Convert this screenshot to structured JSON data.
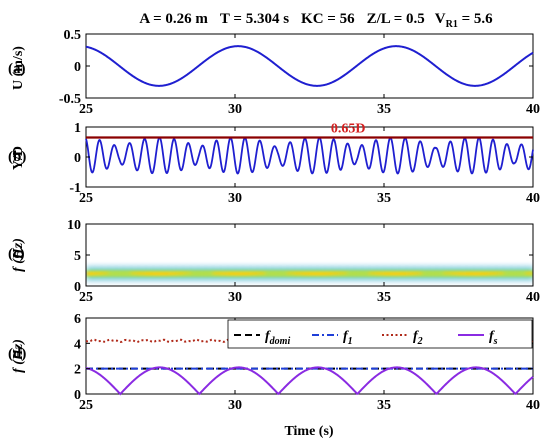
{
  "header": {
    "A": "A = 0.26 m",
    "T": "T = 5.304 s",
    "KC": "KC = 56",
    "ZL": "Z/L = 0.5",
    "VR_main": "V",
    "VR_sub": "R1",
    "VR_val": " = 5.6"
  },
  "xlabel": "Time (s)",
  "colors": {
    "signal": "#1f1fd0",
    "threshold": "#8b0000",
    "annotation": "#d42020",
    "f_domi": "#000000",
    "f_1": "#1f3fd8",
    "f_2": "#b02a1a",
    "f_s": "#8a2be2"
  },
  "chart_data": [
    {
      "id": "a",
      "panel_label": "(a)",
      "type": "line",
      "ylabel": "U (m/s)",
      "xlim": [
        25,
        40
      ],
      "ylim": [
        -0.5,
        0.5
      ],
      "xticks": [
        "25",
        "30",
        "35",
        "40"
      ],
      "yticks": [
        "-0.5",
        "0",
        "0.5"
      ],
      "ytick_values": [
        -0.5,
        0,
        0.5
      ],
      "series": [
        {
          "amplitude": 0.31,
          "period": 5.304,
          "peak_time": 30.1
        }
      ]
    },
    {
      "id": "b",
      "panel_label": "(b)",
      "type": "line",
      "ylabel": "Y/D",
      "xlim": [
        25,
        40
      ],
      "ylim": [
        -1,
        1
      ],
      "xticks": [
        "25",
        "30",
        "35",
        "40"
      ],
      "yticks": [
        "-1",
        "0",
        "1"
      ],
      "ytick_values": [
        -1,
        0,
        1
      ],
      "threshold": 0.65,
      "annotation": "0.65D",
      "annotation_x": 33.8,
      "series": [
        {
          "mean": 0.05,
          "amp_min": 0.25,
          "amp_max": 0.6,
          "frequency": 2.05
        }
      ]
    },
    {
      "id": "c",
      "panel_label": "(c)",
      "type": "heatmap",
      "ylabel": "f (Hz)",
      "xlim": [
        25,
        40
      ],
      "ylim": [
        0,
        10
      ],
      "xticks": [
        "25",
        "30",
        "35",
        "40"
      ],
      "yticks": [
        "0",
        "5",
        "10"
      ],
      "ytick_values": [
        0,
        5,
        10
      ],
      "ridge_frequency": 2.0
    },
    {
      "id": "d",
      "panel_label": "(d)",
      "type": "line",
      "ylabel": "f (Hz)",
      "xlim": [
        25,
        40
      ],
      "ylim": [
        0,
        6
      ],
      "xticks": [
        "25",
        "30",
        "35",
        "40"
      ],
      "yticks": [
        "0",
        "2",
        "4",
        "6"
      ],
      "ytick_values": [
        0,
        2,
        4,
        6
      ],
      "legend": [
        {
          "main": "f",
          "sub": "domi",
          "style": "dashed",
          "color_key": "f_domi"
        },
        {
          "main": "f",
          "sub": "1",
          "style": "dashdot",
          "color_key": "f_1"
        },
        {
          "main": "f",
          "sub": "2",
          "style": "dotted",
          "color_key": "f_2"
        },
        {
          "main": "f",
          "sub": "s",
          "style": "solid",
          "color_key": "f_s"
        }
      ],
      "series": [
        {
          "key": "f_domi",
          "value": 2.0
        },
        {
          "key": "f_1",
          "value": 2.0
        },
        {
          "key": "f_2",
          "value": 4.2
        },
        {
          "key": "f_s",
          "peak": 2.1,
          "period": 2.652,
          "zero_time": 26.15
        }
      ]
    }
  ]
}
